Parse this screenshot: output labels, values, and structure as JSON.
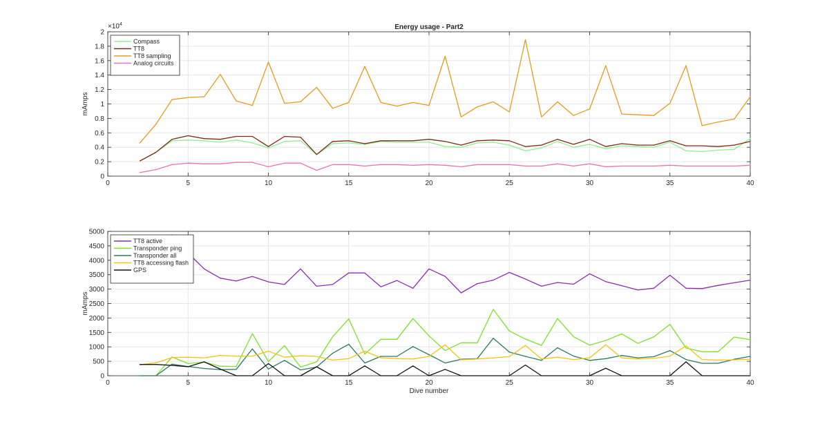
{
  "chart_data": [
    {
      "type": "line",
      "title": "Energy usage - Part2",
      "xlabel": "",
      "ylabel": "mAmps",
      "y_exponent_label": "×10",
      "y_exponent_power": "4",
      "xlim": [
        0,
        40
      ],
      "ylim": [
        0,
        20000
      ],
      "xticks": [
        0,
        5,
        10,
        15,
        20,
        25,
        30,
        35,
        40
      ],
      "xtick_labels": [
        "0",
        "5",
        "10",
        "15",
        "20",
        "25",
        "30",
        "35",
        "40"
      ],
      "yticks": [
        0,
        2000,
        4000,
        6000,
        8000,
        10000,
        12000,
        14000,
        16000,
        18000,
        20000
      ],
      "ytick_labels": [
        "0",
        "0.2",
        "0.4",
        "0.6",
        "0.8",
        "1",
        "1.2",
        "1.4",
        "1.6",
        "1.8",
        "2"
      ],
      "grid": true,
      "legend_position": "top-left",
      "x": [
        2,
        3,
        4,
        5,
        6,
        7,
        8,
        9,
        10,
        11,
        12,
        13,
        14,
        15,
        16,
        17,
        18,
        19,
        20,
        21,
        22,
        23,
        24,
        25,
        26,
        27,
        28,
        29,
        30,
        31,
        32,
        33,
        34,
        35,
        36,
        37,
        38,
        39,
        40
      ],
      "series": [
        {
          "name": "Compass",
          "color": "#90ee90",
          "values": [
            2100,
            3300,
            4900,
            5000,
            4900,
            4700,
            5000,
            4600,
            3900,
            4800,
            4900,
            3000,
            4500,
            4600,
            4400,
            4800,
            4700,
            4700,
            4700,
            4100,
            4000,
            4600,
            4700,
            4300,
            3500,
            3900,
            4800,
            4000,
            4400,
            3800,
            4200,
            4100,
            4000,
            4700,
            3500,
            3400,
            3600,
            3700,
            5200
          ]
        },
        {
          "name": "TT8",
          "color": "#7b2a12",
          "values": [
            2100,
            3300,
            5100,
            5600,
            5200,
            5100,
            5500,
            5500,
            4100,
            5500,
            5400,
            3000,
            4800,
            4900,
            4500,
            4900,
            4900,
            4900,
            5100,
            4800,
            4300,
            4900,
            5000,
            4900,
            4100,
            4300,
            5100,
            4400,
            5100,
            4100,
            4500,
            4300,
            4300,
            4900,
            4200,
            4200,
            4100,
            4300,
            4800
          ]
        },
        {
          "name": "TT8 sampling",
          "color": "#e59b1c",
          "values": [
            4600,
            7200,
            10600,
            10900,
            11000,
            14100,
            10400,
            9800,
            15800,
            10100,
            10300,
            12300,
            9400,
            10200,
            15200,
            10200,
            9700,
            10200,
            9800,
            16600,
            8200,
            9600,
            10300,
            8900,
            18900,
            8200,
            10300,
            8400,
            9300,
            15300,
            8600,
            8500,
            8400,
            10100,
            15300,
            7000,
            7500,
            7900,
            11000
          ]
        },
        {
          "name": "Analog circuits",
          "color": "#e872b2",
          "values": [
            500,
            900,
            1600,
            1800,
            1700,
            1700,
            1900,
            1900,
            1300,
            1800,
            1800,
            800,
            1600,
            1600,
            1400,
            1600,
            1600,
            1500,
            1600,
            1500,
            1300,
            1600,
            1600,
            1600,
            1400,
            1400,
            1700,
            1400,
            1700,
            1300,
            1400,
            1400,
            1400,
            1500,
            1400,
            1400,
            1400,
            1400,
            1500
          ]
        }
      ]
    },
    {
      "type": "line",
      "title": "",
      "xlabel": "Dive number",
      "ylabel": "mAmps",
      "xlim": [
        0,
        40
      ],
      "ylim": [
        0,
        5000
      ],
      "xticks": [
        0,
        5,
        10,
        15,
        20,
        25,
        30,
        35,
        40
      ],
      "xtick_labels": [
        "0",
        "5",
        "10",
        "15",
        "20",
        "25",
        "30",
        "35",
        "40"
      ],
      "yticks": [
        0,
        500,
        1000,
        1500,
        2000,
        2500,
        3000,
        3500,
        4000,
        4500,
        5000
      ],
      "ytick_labels": [
        "0",
        "500",
        "1000",
        "1500",
        "2000",
        "2500",
        "3000",
        "3500",
        "4000",
        "4500",
        "5000"
      ],
      "grid": true,
      "legend_position": "top-left",
      "x": [
        2,
        3,
        4,
        5,
        6,
        7,
        8,
        9,
        10,
        11,
        12,
        13,
        14,
        15,
        16,
        17,
        18,
        19,
        20,
        21,
        22,
        23,
        24,
        25,
        26,
        27,
        28,
        29,
        30,
        31,
        32,
        33,
        34,
        35,
        36,
        37,
        38,
        39,
        40
      ],
      "series": [
        {
          "name": "TT8 active",
          "color": "#8b2bb5",
          "values": [
            4830,
            4720,
            4880,
            4250,
            3700,
            3380,
            3280,
            3440,
            3250,
            3160,
            3700,
            3100,
            3160,
            3560,
            3560,
            3080,
            3300,
            3030,
            3700,
            3440,
            2870,
            3190,
            3310,
            3580,
            3350,
            3100,
            3230,
            3170,
            3530,
            3260,
            3120,
            2970,
            3030,
            3480,
            3030,
            3020,
            3130,
            3220,
            3310
          ]
        },
        {
          "name": "Transponder ping",
          "color": "#7fe02a",
          "values": [
            0,
            0,
            650,
            420,
            470,
            330,
            320,
            1460,
            490,
            1040,
            300,
            480,
            1350,
            1970,
            750,
            1260,
            1260,
            1980,
            1380,
            870,
            1140,
            1140,
            2300,
            1550,
            1270,
            1050,
            1980,
            1350,
            1060,
            1220,
            1450,
            1120,
            1350,
            1780,
            960,
            830,
            830,
            1340,
            1250
          ]
        },
        {
          "name": "Transponder all",
          "color": "#2a7a60",
          "values": [
            0,
            0,
            400,
            320,
            250,
            210,
            220,
            930,
            230,
            530,
            200,
            300,
            780,
            1090,
            440,
            670,
            670,
            1010,
            730,
            440,
            570,
            590,
            1300,
            820,
            670,
            530,
            970,
            680,
            530,
            590,
            700,
            620,
            660,
            870,
            560,
            430,
            430,
            570,
            670
          ]
        },
        {
          "name": "TT8 accessing flash",
          "color": "#f2c40f",
          "values": [
            380,
            450,
            630,
            640,
            620,
            700,
            680,
            680,
            850,
            640,
            690,
            670,
            540,
            590,
            850,
            620,
            590,
            580,
            670,
            1070,
            550,
            580,
            620,
            660,
            1050,
            580,
            640,
            560,
            620,
            1070,
            620,
            580,
            600,
            680,
            1030,
            560,
            540,
            550,
            570
          ]
        },
        {
          "name": "GPS",
          "color": "#111111",
          "values": [
            390,
            390,
            360,
            310,
            480,
            230,
            0,
            0,
            420,
            0,
            0,
            310,
            0,
            0,
            340,
            0,
            0,
            340,
            0,
            220,
            0,
            0,
            0,
            0,
            370,
            0,
            0,
            0,
            0,
            260,
            0,
            0,
            0,
            0,
            480,
            0,
            0,
            0,
            0
          ]
        }
      ]
    }
  ]
}
